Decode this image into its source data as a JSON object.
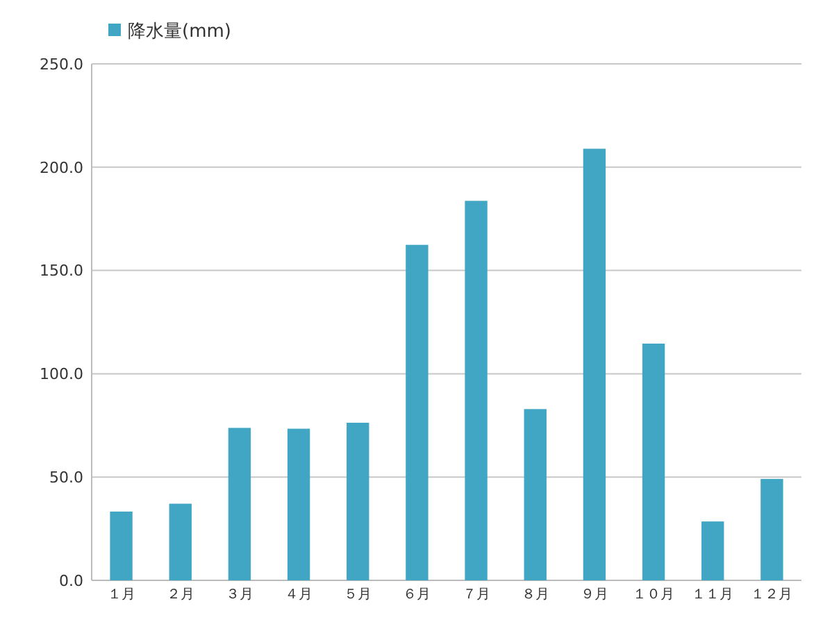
{
  "chart_data": {
    "type": "bar",
    "categories": [
      "１月",
      "２月",
      "３月",
      "４月",
      "５月",
      "６月",
      "７月",
      "８月",
      "９月",
      "１０月",
      "１１月",
      "１２月"
    ],
    "series": [
      {
        "name": "降水量(mm)",
        "color": "#41a6c4",
        "values": [
          33.3,
          37.1,
          73.8,
          73.4,
          76.3,
          162.4,
          183.7,
          82.9,
          208.9,
          114.6,
          28.5,
          49.1
        ]
      }
    ],
    "ylim": [
      0,
      250
    ],
    "yticks": [
      {
        "value": 0,
        "label": "0.0"
      },
      {
        "value": 50,
        "label": "50.0"
      },
      {
        "value": 100,
        "label": "100.0"
      },
      {
        "value": 150,
        "label": "150.0"
      },
      {
        "value": 200,
        "label": "200.0"
      },
      {
        "value": 250,
        "label": "250.0"
      }
    ],
    "grid": "y",
    "legend": "top left"
  }
}
